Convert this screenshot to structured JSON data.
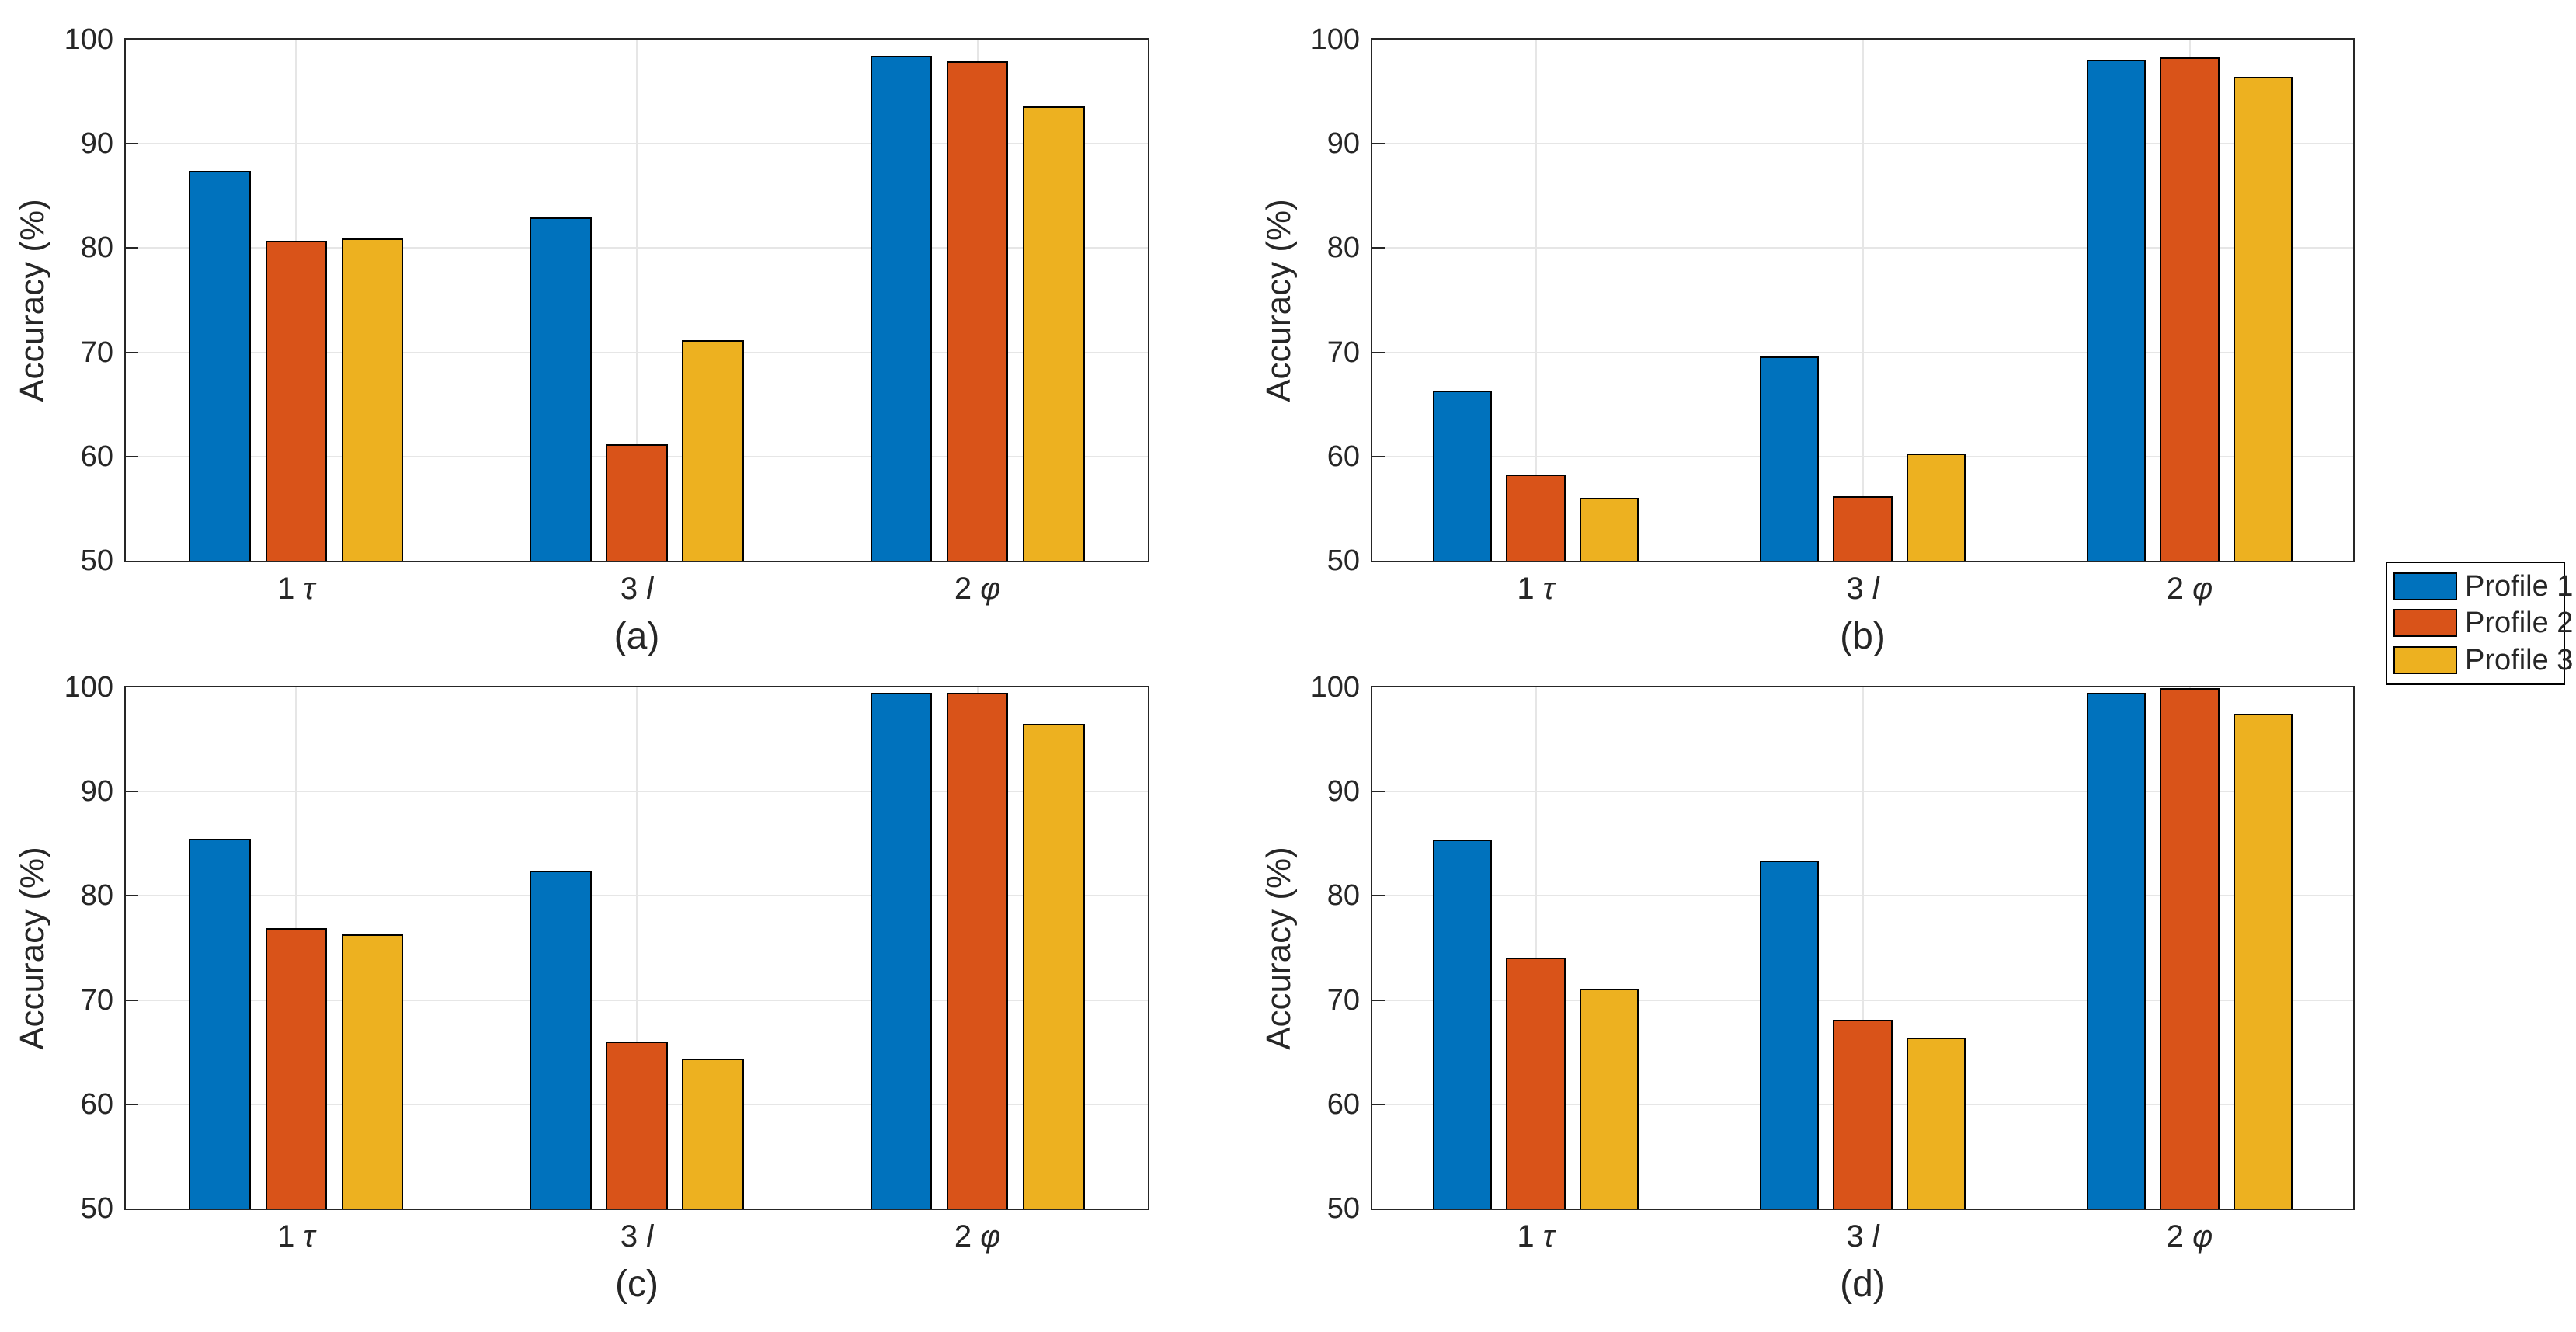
{
  "axes": {
    "ylabel": "Accuracy (%)",
    "ylim": [
      50,
      100
    ],
    "yticks": [
      "50",
      "60",
      "70",
      "80",
      "90",
      "100"
    ],
    "grid": true,
    "background": "#ffffff",
    "axis_color": "#262626",
    "grid_color": "#e6e6e6"
  },
  "category_parts": [
    {
      "num": "1",
      "sym": "τ"
    },
    {
      "num": "3",
      "sym": "l"
    },
    {
      "num": "2",
      "sym": "φ"
    }
  ],
  "legend": {
    "position": "right-middle",
    "items": [
      {
        "label": "Profile 1",
        "color": "#0072BD"
      },
      {
        "label": "Profile 2",
        "color": "#D95319"
      },
      {
        "label": "Profile 3",
        "color": "#EDB120"
      }
    ]
  },
  "chart_data": [
    {
      "type": "bar",
      "caption": "(a)",
      "categories": [
        "1 τ",
        "3 l",
        "2 φ"
      ],
      "xlabel": "",
      "ylabel": "Accuracy (%)",
      "ylim": [
        50,
        100
      ],
      "series": [
        {
          "name": "Profile 1",
          "color": "#0072BD",
          "values": [
            87.4,
            82.9,
            98.4
          ]
        },
        {
          "name": "Profile 2",
          "color": "#D95319",
          "values": [
            80.7,
            61.2,
            97.9
          ]
        },
        {
          "name": "Profile 3",
          "color": "#EDB120",
          "values": [
            80.9,
            71.2,
            93.6
          ]
        }
      ]
    },
    {
      "type": "bar",
      "caption": "(b)",
      "categories": [
        "1 τ",
        "3 l",
        "2 φ"
      ],
      "xlabel": "",
      "ylabel": "Accuracy (%)",
      "ylim": [
        50,
        100
      ],
      "series": [
        {
          "name": "Profile 1",
          "color": "#0072BD",
          "values": [
            66.3,
            69.6,
            98.1
          ]
        },
        {
          "name": "Profile 2",
          "color": "#D95319",
          "values": [
            58.3,
            56.2,
            98.3
          ]
        },
        {
          "name": "Profile 3",
          "color": "#EDB120",
          "values": [
            56.0,
            60.3,
            96.4
          ]
        }
      ]
    },
    {
      "type": "bar",
      "caption": "(c)",
      "categories": [
        "1 τ",
        "3 l",
        "2 φ"
      ],
      "xlabel": "",
      "ylabel": "Accuracy (%)",
      "ylim": [
        50,
        100
      ],
      "series": [
        {
          "name": "Profile 1",
          "color": "#0072BD",
          "values": [
            85.5,
            82.4,
            99.5
          ]
        },
        {
          "name": "Profile 2",
          "color": "#D95319",
          "values": [
            76.9,
            66.0,
            99.5
          ]
        },
        {
          "name": "Profile 3",
          "color": "#EDB120",
          "values": [
            76.3,
            64.4,
            96.5
          ]
        }
      ]
    },
    {
      "type": "bar",
      "caption": "(d)",
      "categories": [
        "1 τ",
        "3 l",
        "2 φ"
      ],
      "xlabel": "",
      "ylabel": "Accuracy (%)",
      "ylim": [
        50,
        100
      ],
      "series": [
        {
          "name": "Profile 1",
          "color": "#0072BD",
          "values": [
            85.4,
            83.4,
            99.5
          ]
        },
        {
          "name": "Profile 2",
          "color": "#D95319",
          "values": [
            74.1,
            68.1,
            99.9
          ]
        },
        {
          "name": "Profile 3",
          "color": "#EDB120",
          "values": [
            71.1,
            66.4,
            97.5
          ]
        }
      ]
    }
  ]
}
